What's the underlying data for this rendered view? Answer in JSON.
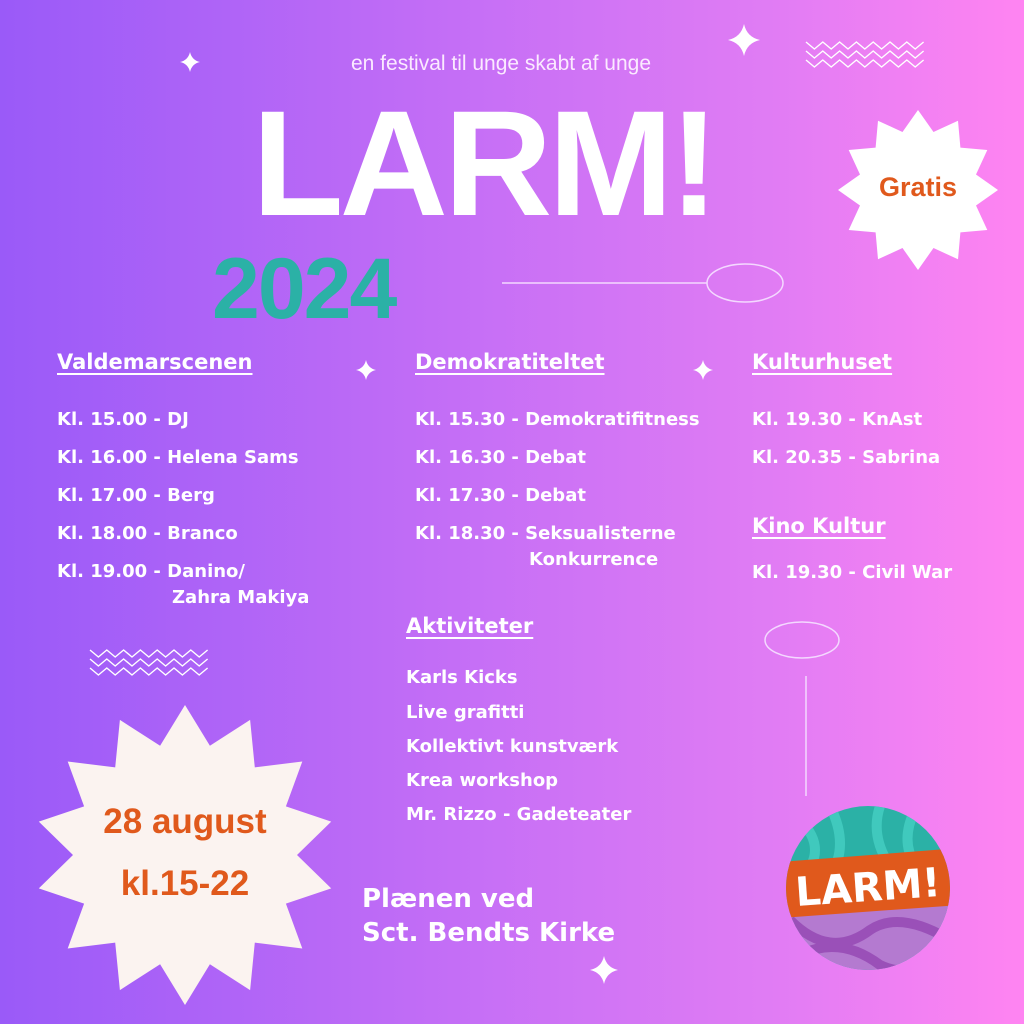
{
  "tagline": "en festival til unge skabt af unge",
  "title": "LARM!",
  "year": "2024",
  "badge": "Gratis",
  "colors": {
    "accent_teal": "#2bb1a6",
    "accent_orange": "#e0591c",
    "gradient_start": "#9a5af8",
    "gradient_end": "#ff84f2"
  },
  "venues": {
    "valdemarscenen": {
      "heading": "Valdemarscenen",
      "items": [
        "Kl. 15.00 - DJ",
        "Kl. 16.00 - Helena Sams",
        "Kl. 17.00 - Berg",
        "Kl. 18.00 - Branco",
        "Kl. 19.00 - Danino/",
        "Zahra Makiya"
      ]
    },
    "demokratiteltet": {
      "heading": "Demokratiteltet",
      "items": [
        "Kl. 15.30 - Demokratifitness",
        "Kl. 16.30 - Debat",
        "Kl. 17.30 - Debat",
        "Kl. 18.30 - Seksualisterne",
        "Konkurrence"
      ]
    },
    "kulturhuset": {
      "heading": "Kulturhuset",
      "items": [
        "Kl. 19.30 - KnAst",
        "Kl. 20.35 - Sabrina"
      ]
    },
    "kino_kultur": {
      "heading": "Kino Kultur",
      "items": [
        "Kl. 19.30 - Civil War"
      ]
    },
    "aktiviteter": {
      "heading": "Aktiviteter",
      "items": [
        "Karls Kicks",
        "Live grafitti",
        "Kollektivt kunstværk",
        "Krea workshop",
        "Mr. Rizzo - Gadeteater"
      ]
    }
  },
  "date": {
    "day": "28 august",
    "time": "kl.15-22"
  },
  "location": {
    "line1": "Plænen ved",
    "line2": "Sct. Bendts Kirke"
  },
  "logo_text": "LARM!",
  "icons": [
    "sparkle-icon",
    "zigzag-decoration",
    "starburst-badge",
    "larm-logo"
  ]
}
